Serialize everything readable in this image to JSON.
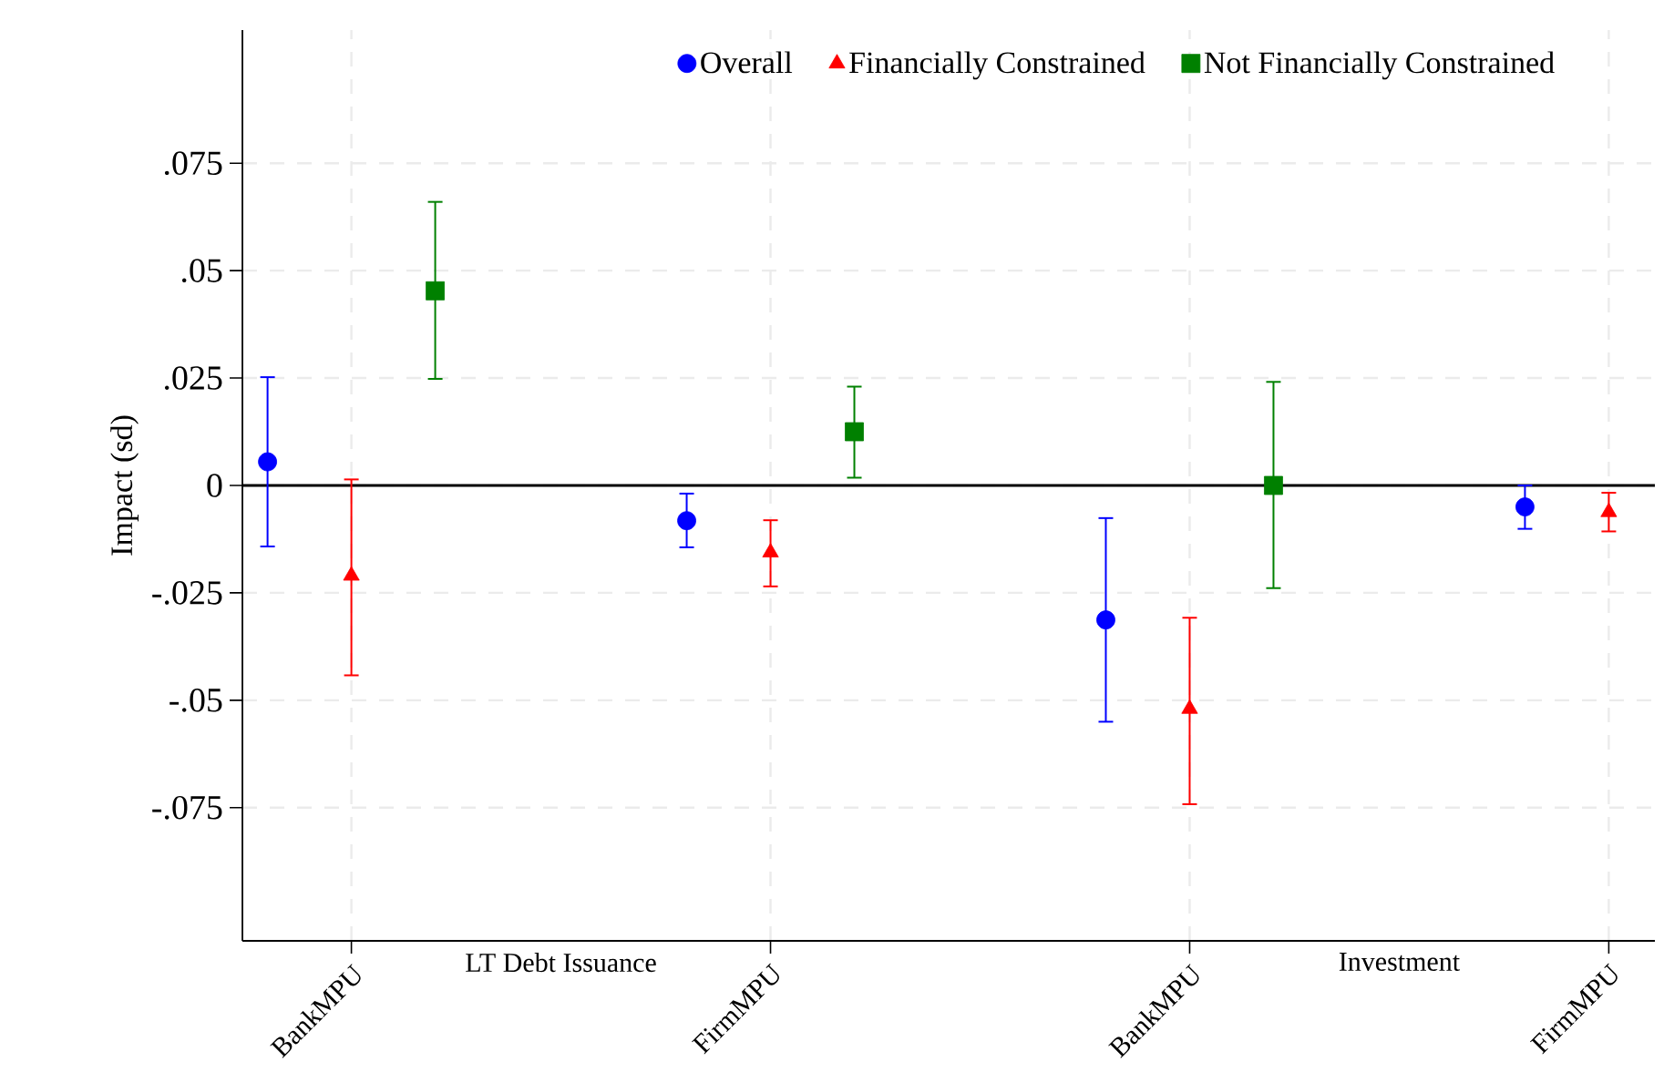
{
  "chart_data": {
    "type": "scatter",
    "ylabel": "Impact (sd)",
    "categories": [
      null,
      "BankMPU",
      null,
      null,
      null,
      null,
      "FirmMPU",
      null,
      null,
      null,
      null,
      "BankMPU",
      null,
      null,
      null,
      null,
      "FirmMPU"
    ],
    "ylim": [
      -0.106,
      0.106
    ],
    "yticks": [
      {
        "value": -0.075,
        "label": "-.075"
      },
      {
        "value": -0.05,
        "label": "-.05"
      },
      {
        "value": -0.025,
        "label": "-.025"
      },
      0,
      {
        "value": 0.025,
        "label": ".025"
      },
      {
        "value": 0.05,
        "label": ".05"
      },
      {
        "value": 0.075,
        "label": ".075"
      }
    ],
    "annotations": [
      "LT Debt Issuance",
      "Investment"
    ],
    "grid": true,
    "legend": "top",
    "ref_lines": [
      {
        "axis": "y",
        "value": 0,
        "color": "#000000"
      }
    ],
    "series": [
      {
        "name": "Overall",
        "color": "#0000ff",
        "marker": "circle",
        "values": [
          0.0055,
          null,
          null,
          null,
          null,
          -0.0082,
          null,
          null,
          null,
          null,
          -0.0313,
          null,
          null,
          null,
          null,
          -0.005,
          null
        ],
        "errors": [
          [
            -0.0142,
            0.0252
          ],
          null,
          null,
          null,
          null,
          [
            -0.0144,
            -0.0019
          ],
          null,
          null,
          null,
          null,
          [
            -0.055,
            -0.0076
          ],
          null,
          null,
          null,
          null,
          [
            -0.0101,
            0
          ],
          null
        ]
      },
      {
        "name": "Financially Constrained",
        "color": "#ff0000",
        "marker": "triangle",
        "values": [
          null,
          -0.021,
          null,
          null,
          null,
          null,
          -0.0156,
          null,
          null,
          null,
          null,
          -0.052,
          null,
          null,
          null,
          null,
          -0.0062
        ],
        "errors": [
          null,
          [
            -0.0442,
            0.0014
          ],
          null,
          null,
          null,
          null,
          [
            -0.0235,
            -0.0081
          ],
          null,
          null,
          null,
          null,
          [
            -0.0742,
            -0.0308
          ],
          null,
          null,
          null,
          null,
          [
            -0.0107,
            -0.0017
          ]
        ]
      },
      {
        "name": "Not Financially Constrained",
        "color": "#008000",
        "marker": "square",
        "values": [
          null,
          null,
          0.0453,
          null,
          null,
          null,
          null,
          0.0125,
          null,
          null,
          null,
          null,
          0,
          null,
          null,
          null,
          null
        ],
        "errors": [
          null,
          null,
          [
            0.0248,
            0.066
          ],
          null,
          null,
          null,
          null,
          [
            0.0018,
            0.023
          ],
          null,
          null,
          null,
          null,
          [
            -0.0239,
            0.0241
          ],
          null,
          null,
          null,
          null
        ]
      }
    ]
  }
}
